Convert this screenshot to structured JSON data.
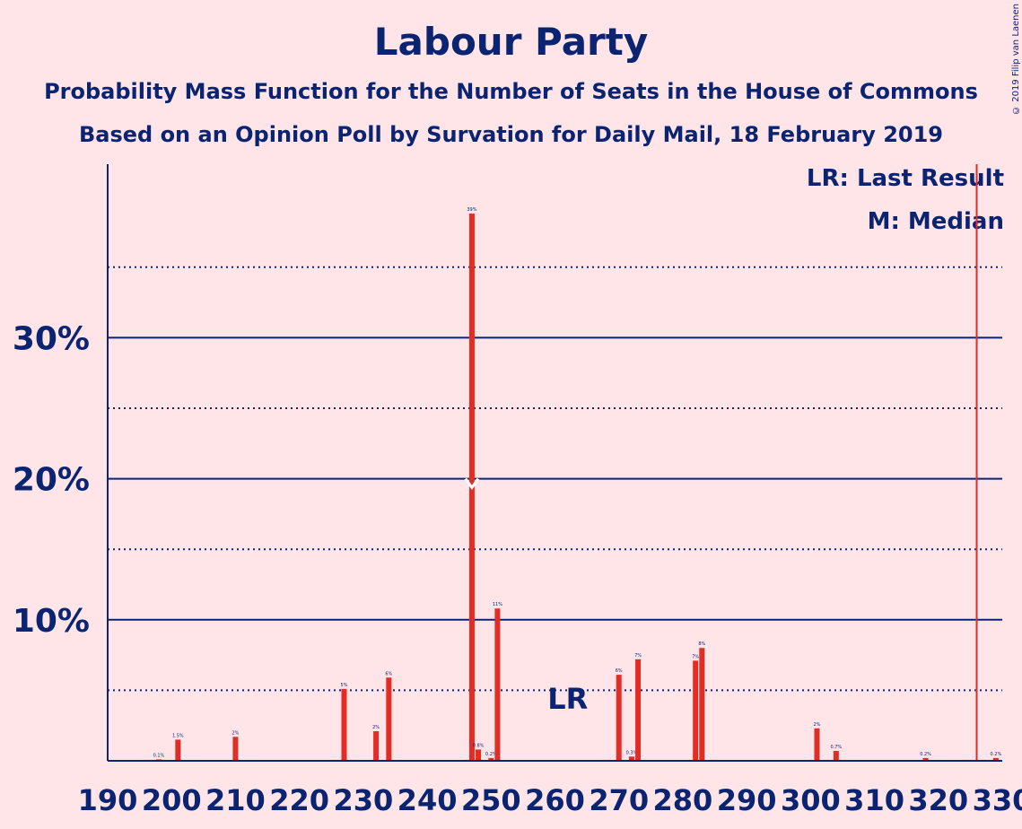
{
  "title": "Labour Party",
  "subtitle1": "Probability Mass Function for the Number of Seats in the House of Commons",
  "subtitle2": "Based on an Opinion Poll by Survation for Daily Mail, 18 February 2019",
  "copyright": "© 2019 Filip van Laenen",
  "legend": {
    "last_result": "LR: Last Result",
    "median": "M: Median"
  },
  "annotations": {
    "lr_label": "LR",
    "lr_seat": 262,
    "median_seat": 247,
    "majority_seat": 326
  },
  "colors": {
    "background": "#FFE4E8",
    "text": "#0A2472",
    "bar": "#E32C24",
    "majority_line": "#E32C24"
  },
  "chart_data": {
    "type": "bar",
    "xlim": [
      190,
      330
    ],
    "ylim": [
      0,
      40
    ],
    "x_ticks": [
      "190",
      "200",
      "210",
      "220",
      "230",
      "240",
      "250",
      "260",
      "270",
      "280",
      "290",
      "300",
      "310",
      "320",
      "330"
    ],
    "y_ticks": [
      "10%",
      "20%",
      "30%"
    ],
    "grid": "dotted every 5%, solid every 10%",
    "series": [
      {
        "x": [
          198,
          201,
          210,
          227,
          232,
          234,
          247,
          248,
          250,
          251,
          270,
          272,
          273,
          282,
          283,
          301,
          304,
          318,
          329
        ],
        "values": [
          0.1,
          1.5,
          1.7,
          5.1,
          2.1,
          5.9,
          38.8,
          0.8,
          0.2,
          10.8,
          6.1,
          0.3,
          7.2,
          7.1,
          8.0,
          2.3,
          0.7,
          0.2,
          0.2
        ],
        "labels": [
          "0.1%",
          "1.5%",
          "2%",
          "5%",
          "2%",
          "6%",
          "39%",
          "0.8%",
          "0.2%",
          "11%",
          "6%",
          "0.3%",
          "7%",
          "7%",
          "8%",
          "2%",
          "0.7%",
          "0.2%",
          "0.2%"
        ]
      }
    ]
  }
}
